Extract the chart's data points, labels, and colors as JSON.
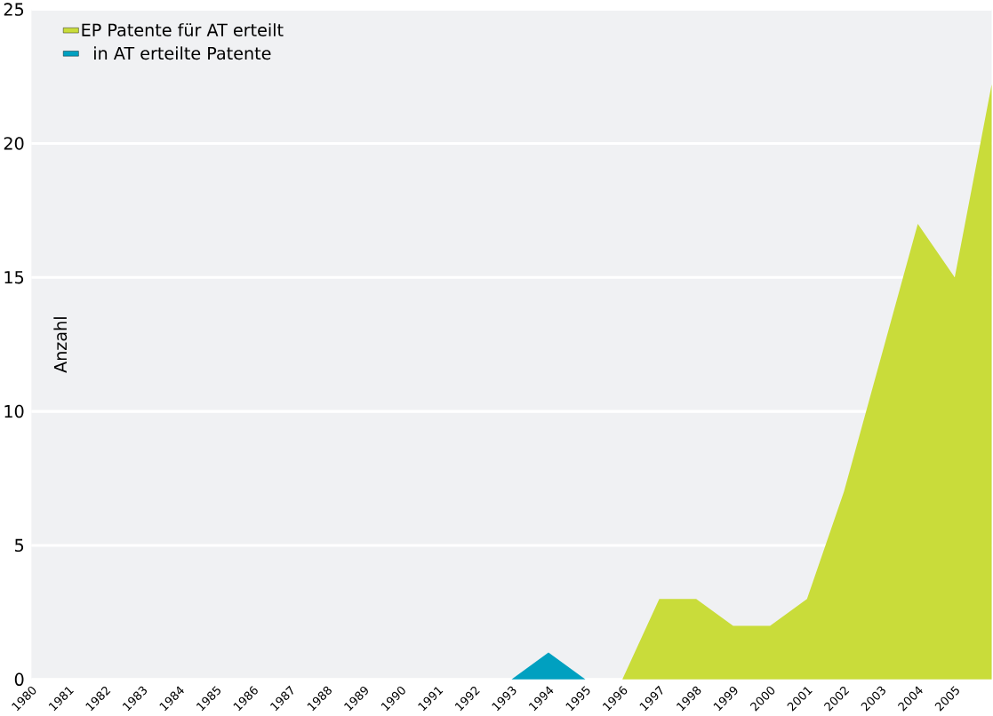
{
  "chart_data": {
    "type": "area",
    "ylabel": "Anzahl",
    "x": [
      1980,
      1981,
      1982,
      1983,
      1984,
      1985,
      1986,
      1987,
      1988,
      1989,
      1990,
      1991,
      1992,
      1993,
      1994,
      1995,
      1996,
      1997,
      1998,
      1999,
      2000,
      2001,
      2002,
      2003,
      2004,
      2005,
      2006
    ],
    "series": [
      {
        "name": "EP Patente für AT erteilt",
        "color": "#c9dc3a",
        "values": [
          0,
          0,
          0,
          0,
          0,
          0,
          0,
          0,
          0,
          0,
          0,
          0,
          0,
          0,
          0,
          0,
          0,
          3,
          3,
          2,
          2,
          3,
          7,
          12,
          17,
          15,
          22.2
        ]
      },
      {
        "name": "in AT erteilte Patente",
        "color": "#00a0c0",
        "values": [
          0,
          0,
          0,
          0,
          0,
          0,
          0,
          0,
          0,
          0,
          0,
          0,
          0,
          0,
          1,
          0,
          0,
          0,
          0,
          0,
          0,
          0,
          0,
          0,
          0,
          0,
          0
        ]
      }
    ],
    "xlim": [
      1980,
      2006
    ],
    "xticks": [
      1980,
      1981,
      1982,
      1983,
      1984,
      1985,
      1986,
      1987,
      1988,
      1989,
      1990,
      1991,
      1992,
      1993,
      1994,
      1995,
      1996,
      1997,
      1998,
      1999,
      2000,
      2001,
      2002,
      2003,
      2004,
      2005
    ],
    "ylim": [
      0,
      25
    ],
    "yticks": [
      0,
      5,
      10,
      15,
      20,
      25
    ],
    "grid": "y",
    "legend": "top left"
  }
}
